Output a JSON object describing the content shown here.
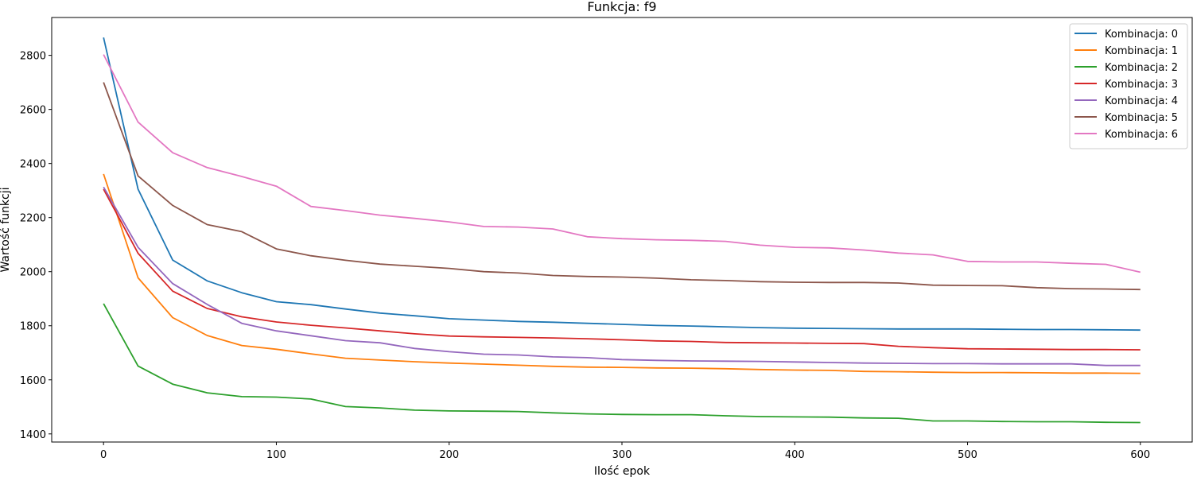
{
  "chart_data": {
    "type": "line",
    "title": "Funkcja: f9",
    "xlabel": "Ilość epok",
    "ylabel": "Wartość funkcji",
    "xlim": [
      -30,
      630
    ],
    "ylim": [
      1370,
      2940
    ],
    "xticks": [
      0,
      100,
      200,
      300,
      400,
      500,
      600
    ],
    "yticks": [
      1400,
      1600,
      1800,
      2000,
      2200,
      2400,
      2600,
      2800
    ],
    "grid": false,
    "legend_position": "top-right",
    "x": [
      0,
      20,
      40,
      60,
      80,
      100,
      120,
      140,
      160,
      180,
      200,
      220,
      240,
      260,
      280,
      300,
      320,
      340,
      360,
      380,
      400,
      420,
      440,
      460,
      480,
      500,
      520,
      540,
      560,
      580,
      600
    ],
    "series": [
      {
        "name": "Kombinacja: 0",
        "color": "#1f77b4",
        "values": [
          2866,
          2305,
          2043,
          1966,
          1922,
          1889,
          1878,
          1862,
          1847,
          1837,
          1826,
          1821,
          1816,
          1813,
          1809,
          1805,
          1801,
          1799,
          1796,
          1793,
          1791,
          1790,
          1789,
          1788,
          1788,
          1788,
          1787,
          1786,
          1786,
          1785,
          1784
        ]
      },
      {
        "name": "Kombinacja: 1",
        "color": "#ff7f0e",
        "values": [
          2361,
          1977,
          1830,
          1764,
          1727,
          1713,
          1696,
          1680,
          1673,
          1667,
          1662,
          1658,
          1654,
          1650,
          1647,
          1646,
          1644,
          1643,
          1641,
          1638,
          1636,
          1635,
          1631,
          1630,
          1628,
          1627,
          1627,
          1626,
          1625,
          1625,
          1624
        ]
      },
      {
        "name": "Kombinacja: 2",
        "color": "#2ca02c",
        "values": [
          1882,
          1651,
          1584,
          1552,
          1538,
          1536,
          1529,
          1501,
          1496,
          1488,
          1485,
          1484,
          1483,
          1478,
          1474,
          1472,
          1471,
          1471,
          1467,
          1464,
          1463,
          1462,
          1459,
          1458,
          1448,
          1448,
          1446,
          1445,
          1445,
          1443,
          1442
        ]
      },
      {
        "name": "Kombinacja: 3",
        "color": "#d62728",
        "values": [
          2305,
          2068,
          1928,
          1864,
          1833,
          1814,
          1802,
          1792,
          1781,
          1770,
          1762,
          1759,
          1757,
          1755,
          1752,
          1748,
          1744,
          1742,
          1738,
          1737,
          1736,
          1735,
          1734,
          1724,
          1719,
          1715,
          1714,
          1713,
          1712,
          1712,
          1711
        ]
      },
      {
        "name": "Kombinacja: 4",
        "color": "#9467bd",
        "values": [
          2313,
          2090,
          1956,
          1879,
          1809,
          1781,
          1763,
          1745,
          1737,
          1716,
          1704,
          1695,
          1692,
          1685,
          1682,
          1675,
          1672,
          1670,
          1669,
          1668,
          1666,
          1664,
          1662,
          1661,
          1660,
          1660,
          1659,
          1659,
          1659,
          1653,
          1653
        ]
      },
      {
        "name": "Kombinacja: 5",
        "color": "#8c564b",
        "values": [
          2700,
          2354,
          2245,
          2174,
          2148,
          2084,
          2059,
          2042,
          2028,
          2020,
          2012,
          2000,
          1995,
          1986,
          1982,
          1980,
          1976,
          1970,
          1967,
          1963,
          1961,
          1960,
          1960,
          1958,
          1950,
          1949,
          1948,
          1941,
          1937,
          1936,
          1934
        ]
      },
      {
        "name": "Kombinacja: 6",
        "color": "#e377c2",
        "values": [
          2803,
          2553,
          2440,
          2385,
          2352,
          2316,
          2241,
          2226,
          2209,
          2197,
          2184,
          2167,
          2165,
          2158,
          2129,
          2122,
          2118,
          2116,
          2112,
          2098,
          2090,
          2088,
          2080,
          2069,
          2062,
          2038,
          2036,
          2036,
          2031,
          2027,
          1998
        ]
      }
    ]
  }
}
